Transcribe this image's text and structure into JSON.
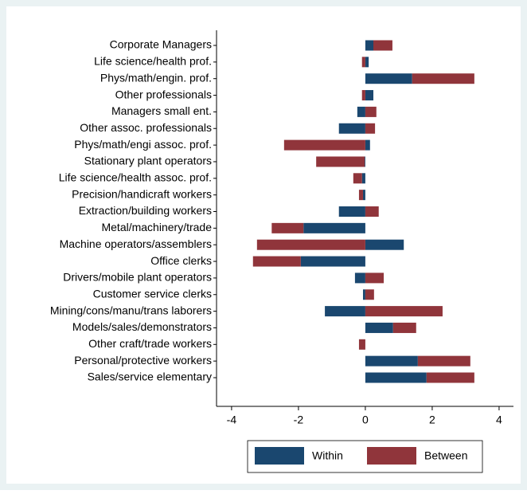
{
  "chart_data": {
    "type": "hbar_stacked",
    "categories": [
      "Corporate Managers",
      "Life science/health prof.",
      "Phys/math/engin. prof.",
      "Other professionals",
      "Managers small ent.",
      "Other assoc. professionals",
      "Phys/math/engi assoc. prof.",
      "Stationary plant operators",
      "Life science/health assoc. prof.",
      "Precision/handicraft workers",
      "Extraction/building workers",
      "Metal/machinery/trade",
      "Machine operators/assemblers",
      "Office clerks",
      "Drivers/mobile plant operators",
      "Customer service clerks",
      "Mining/cons/manu/trans laborers",
      "Models/sales/demonstrators",
      "Other craft/trade workers",
      "Personal/protective workers",
      "Sales/service elementary"
    ],
    "series": [
      {
        "name": "Within",
        "color": "#1a476f",
        "values": [
          0.24,
          0.1,
          1.4,
          0.24,
          -0.24,
          -0.79,
          0.14,
          -0.02,
          -0.1,
          -0.07,
          -0.79,
          -1.85,
          1.15,
          -1.93,
          -0.31,
          -0.07,
          -1.21,
          0.83,
          0,
          1.57,
          1.83
        ]
      },
      {
        "name": "Between",
        "color": "#90353b",
        "values": [
          0.57,
          -0.1,
          1.86,
          -0.1,
          0.33,
          0.29,
          -2.43,
          -1.45,
          -0.26,
          -0.12,
          0.4,
          -0.95,
          -3.24,
          -1.43,
          0.55,
          0.26,
          2.31,
          0.69,
          -0.19,
          1.57,
          1.43
        ]
      }
    ],
    "xlim": [
      -4.45,
      4.43
    ],
    "xticks": [
      -4,
      -2,
      0,
      2,
      4
    ]
  }
}
